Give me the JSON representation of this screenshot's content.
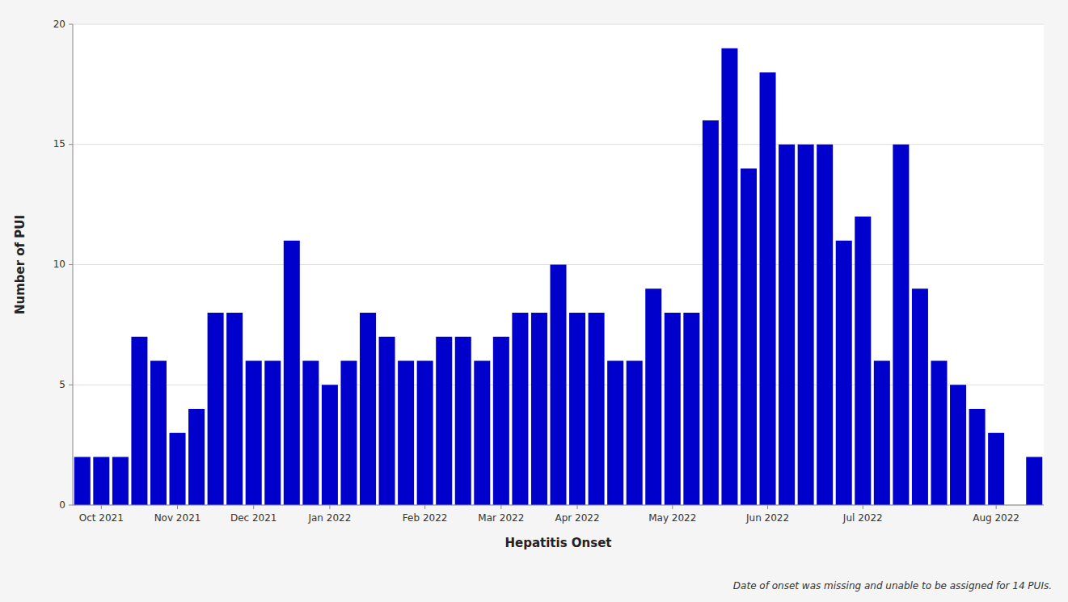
{
  "chart_data": {
    "type": "bar",
    "xlabel": "Hepatitis Onset",
    "ylabel": "Number of PUI",
    "footnote": "Date of onset was missing and unable to be assigned for 14 PUIs.",
    "categories": [
      null,
      "Oct 2021",
      null,
      null,
      null,
      "Nov 2021",
      null,
      null,
      null,
      "Dec 2021",
      null,
      null,
      null,
      "Jan 2022",
      null,
      null,
      null,
      null,
      "Feb 2022",
      null,
      null,
      null,
      "Mar 2022",
      null,
      null,
      null,
      "Apr 2022",
      null,
      null,
      null,
      null,
      "May 2022",
      null,
      null,
      null,
      null,
      "Jun 2022",
      null,
      null,
      null,
      null,
      "Jul 2022",
      null,
      null,
      null,
      null,
      null,
      null,
      "Aug 2022",
      null,
      null
    ],
    "values": [
      2,
      2,
      2,
      7,
      6,
      3,
      4,
      8,
      8,
      6,
      6,
      11,
      6,
      5,
      6,
      8,
      7,
      6,
      6,
      7,
      7,
      6,
      7,
      8,
      8,
      10,
      8,
      8,
      6,
      6,
      9,
      8,
      8,
      16,
      19,
      14,
      18,
      15,
      15,
      15,
      11,
      12,
      6,
      15,
      9,
      6,
      5,
      4,
      3,
      0,
      2
    ],
    "color": "#0000CC",
    "ylim": [
      0,
      20
    ],
    "yticks": [
      0,
      5,
      10,
      15,
      20
    ],
    "grid": true
  }
}
